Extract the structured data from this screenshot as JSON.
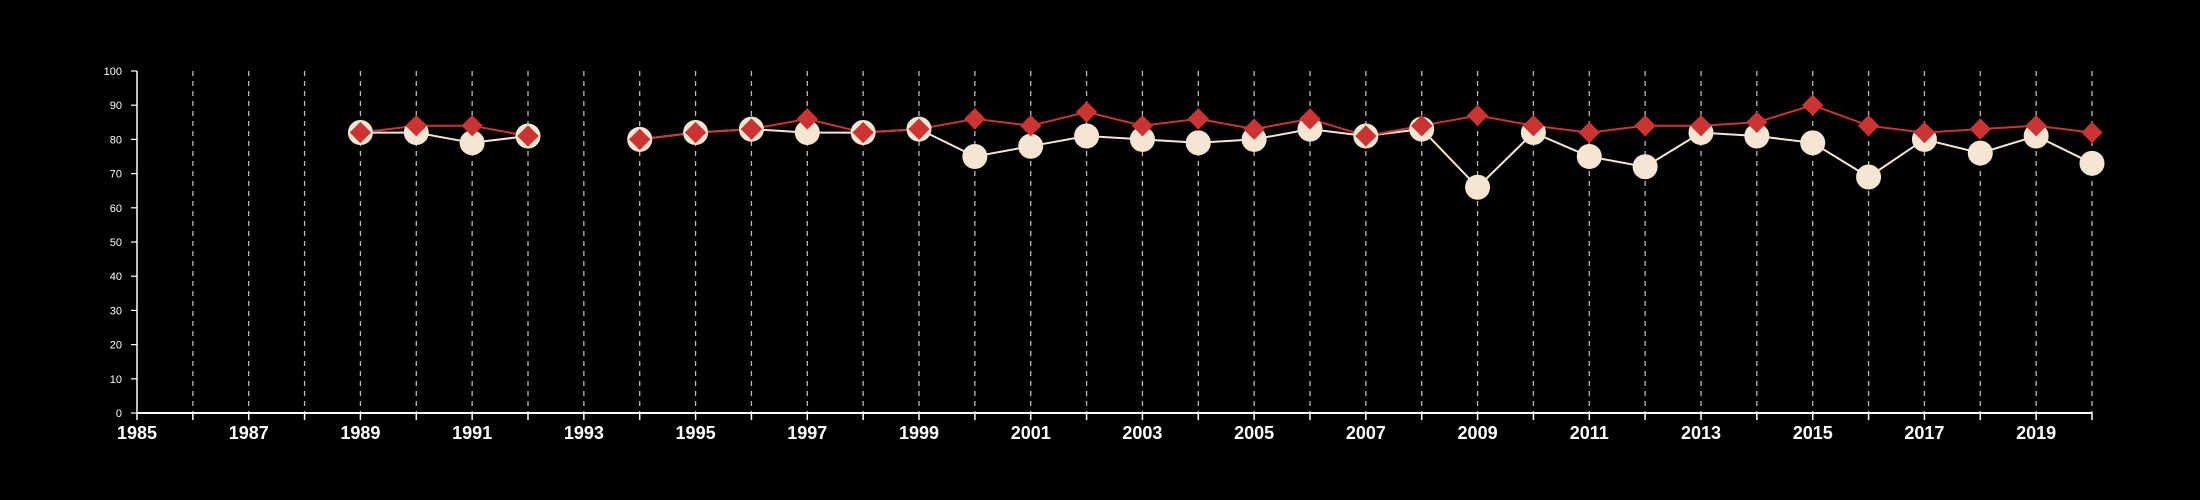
{
  "chart_data": {
    "type": "line",
    "title": "",
    "xlabel": "",
    "ylabel": "",
    "xlim": [
      1985,
      2020
    ],
    "ylim": [
      0,
      100
    ],
    "x_ticks": [
      1985,
      1987,
      1989,
      1991,
      1993,
      1995,
      1997,
      1999,
      2001,
      2003,
      2005,
      2007,
      2009,
      2011,
      2013,
      2015,
      2017,
      2019
    ],
    "y_ticks": [
      0,
      10,
      20,
      30,
      40,
      50,
      60,
      70,
      80,
      90,
      100
    ],
    "grid": "vertical dashed",
    "legend": "none",
    "x": [
      1985,
      1986,
      1987,
      1988,
      1989,
      1990,
      1991,
      1992,
      1993,
      1994,
      1995,
      1996,
      1997,
      1998,
      1999,
      2000,
      2001,
      2002,
      2003,
      2004,
      2005,
      2006,
      2007,
      2008,
      2009,
      2010,
      2011,
      2012,
      2013,
      2014,
      2015,
      2016,
      2017,
      2018,
      2019,
      2020
    ],
    "series": [
      {
        "color": "#cc3333",
        "marker": "diamond",
        "values": [
          null,
          null,
          null,
          null,
          82,
          84,
          84,
          81,
          null,
          80,
          82,
          83,
          86,
          82,
          83,
          86,
          84,
          88,
          84,
          86,
          83,
          86,
          81,
          84,
          87,
          84,
          82,
          84,
          84,
          85,
          90,
          84,
          82,
          83,
          84,
          82
        ]
      },
      {
        "color": "#f5e6d3",
        "marker": "circle",
        "values": [
          null,
          null,
          null,
          null,
          82,
          82,
          79,
          81,
          null,
          80,
          82,
          83,
          82,
          82,
          83,
          75,
          78,
          81,
          80,
          79,
          80,
          83,
          81,
          83,
          66,
          82,
          75,
          72,
          82,
          81,
          79,
          69,
          80,
          76,
          81,
          73
        ]
      }
    ]
  }
}
